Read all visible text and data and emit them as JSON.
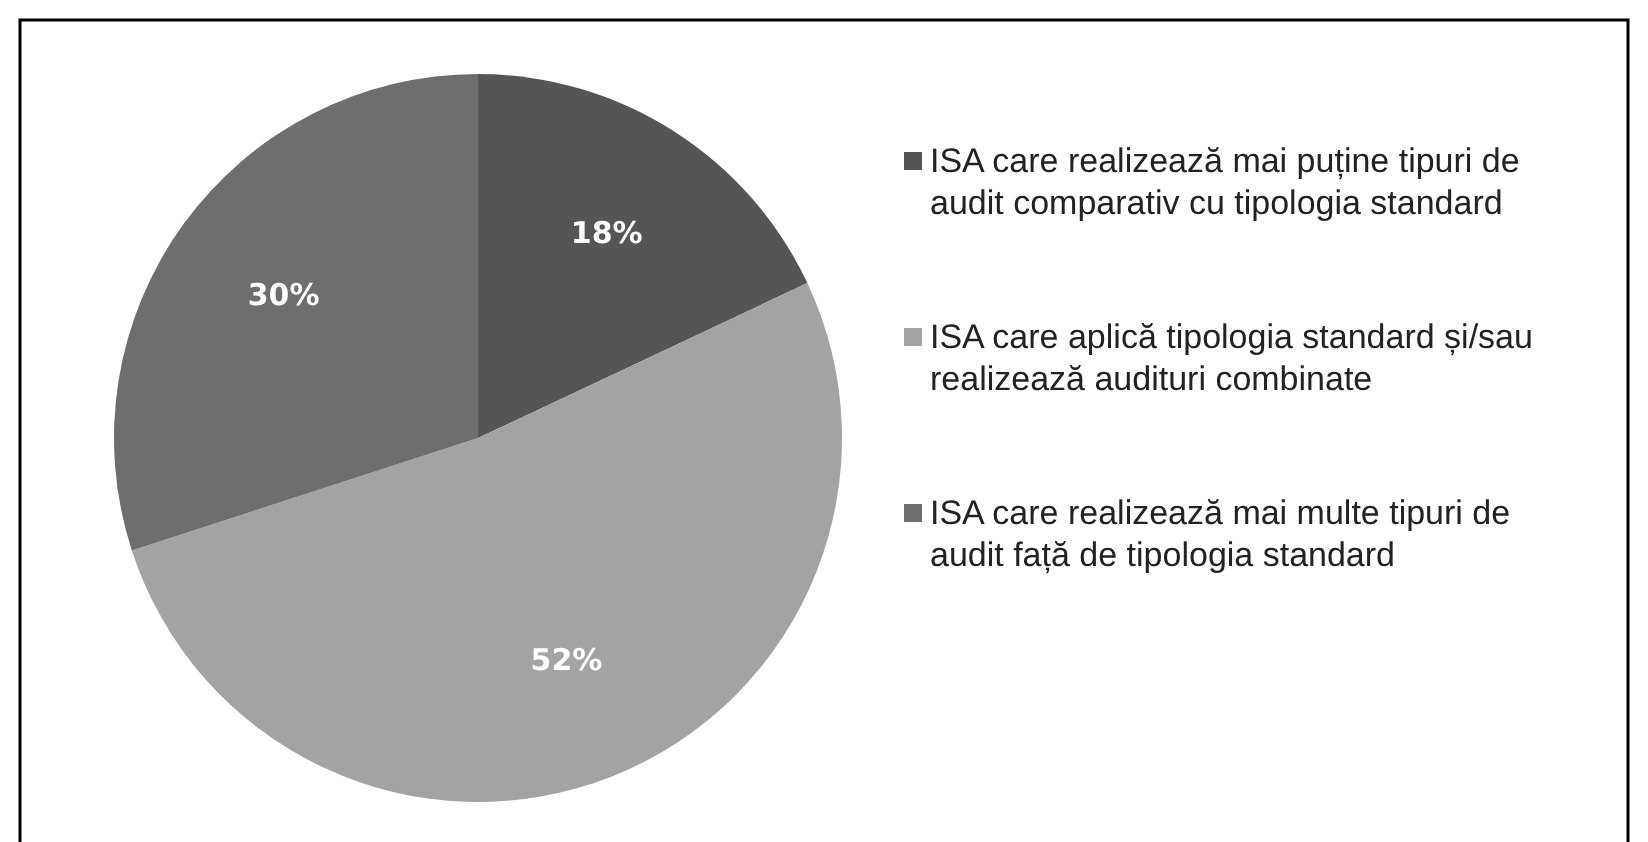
{
  "chart_data": {
    "type": "pie",
    "categories": [
      "ISA care realizează mai puține tipuri de audit comparativ cu tipologia standard",
      "ISA care aplică tipologia standard și/sau realizează audituri combinate",
      "ISA care realizează mai multe tipuri de audit față de tipologia standard"
    ],
    "values": [
      18,
      52,
      30
    ],
    "colors": [
      "#555555",
      "#a3a3a3",
      "#6e6e6e"
    ],
    "value_labels": [
      "18%",
      "52%",
      "30%"
    ],
    "legend": "right"
  }
}
